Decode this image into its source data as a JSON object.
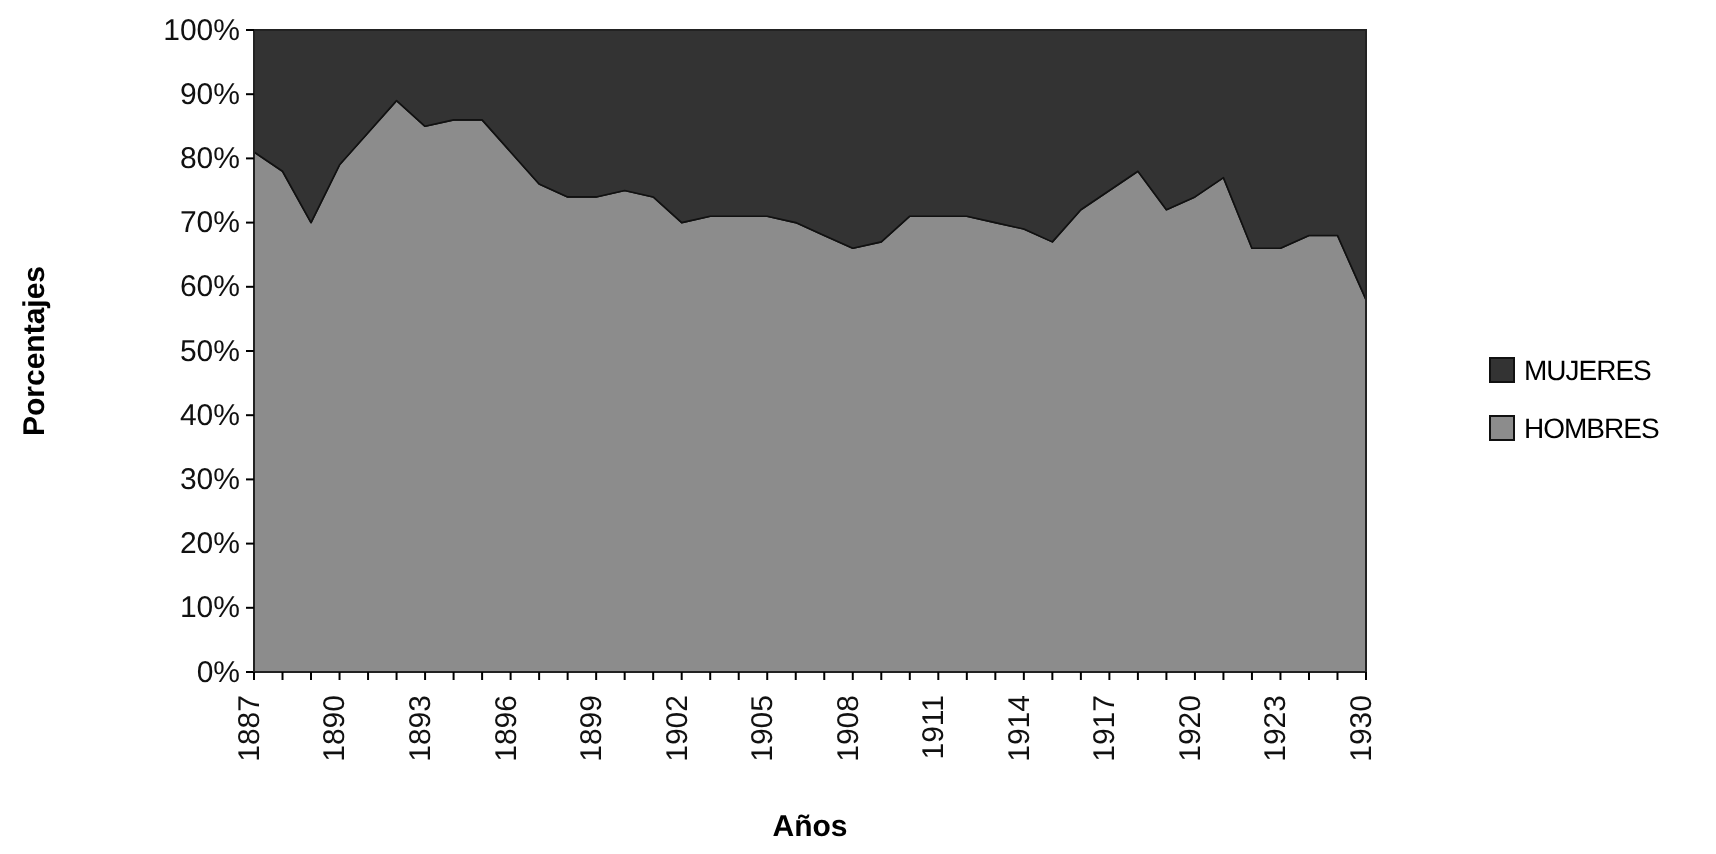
{
  "chart_data": {
    "type": "area",
    "stacked": true,
    "xlabel": "Años",
    "ylabel": "Porcentajes",
    "categories": [
      "1887",
      null,
      null,
      "1890",
      null,
      null,
      "1893",
      null,
      null,
      "1896",
      null,
      null,
      "1899",
      null,
      null,
      "1902",
      null,
      null,
      "1905",
      null,
      null,
      "1908",
      null,
      null,
      "1911",
      null,
      null,
      "1914",
      null,
      null,
      "1917",
      null,
      null,
      "1920",
      null,
      null,
      "1923",
      null,
      null,
      "1930"
    ],
    "series": [
      {
        "name": "HOMBRES",
        "color": "#8c8c8c",
        "values": [
          81,
          78,
          70,
          79,
          84,
          89,
          85,
          86,
          86,
          81,
          76,
          74,
          74,
          75,
          74,
          70,
          71,
          71,
          71,
          70,
          68,
          66,
          67,
          71,
          71,
          71,
          70,
          69,
          67,
          72,
          75,
          78,
          72,
          74,
          77,
          66,
          66,
          68,
          68,
          58
        ]
      },
      {
        "name": "MUJERES",
        "color": "#333333",
        "values": [
          19,
          22,
          30,
          21,
          16,
          11,
          15,
          14,
          14,
          19,
          24,
          26,
          26,
          25,
          26,
          30,
          29,
          29,
          29,
          30,
          32,
          34,
          33,
          29,
          29,
          29,
          30,
          31,
          33,
          28,
          25,
          22,
          28,
          26,
          23,
          34,
          34,
          32,
          32,
          42
        ]
      }
    ],
    "ylim": [
      0,
      100
    ],
    "yticks": [
      {
        "value": 0,
        "label": "0%"
      },
      {
        "value": 10,
        "label": "10%"
      },
      {
        "value": 20,
        "label": "20%"
      },
      {
        "value": 30,
        "label": "30%"
      },
      {
        "value": 40,
        "label": "40%"
      },
      {
        "value": 50,
        "label": "50%"
      },
      {
        "value": 60,
        "label": "60%"
      },
      {
        "value": 70,
        "label": "70%"
      },
      {
        "value": 80,
        "label": "80%"
      },
      {
        "value": 90,
        "label": "90%"
      },
      {
        "value": 100,
        "label": "100%"
      }
    ],
    "legend": "right"
  }
}
